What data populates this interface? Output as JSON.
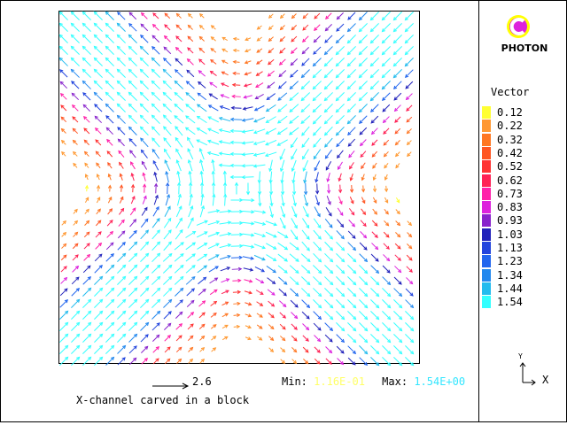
{
  "plot": {
    "title": "X-channel carved in a block",
    "reference_vector_label": "2.6",
    "min_label": "Min:",
    "min_value": "1.16E-01",
    "max_label": "Max:",
    "max_value": "1.54E+00"
  },
  "logo": {
    "icon": "photon-logo-icon",
    "text": "PHOTON"
  },
  "legend": {
    "title": "Vector",
    "entries": [
      {
        "label": "0.12",
        "color": "#ffff33"
      },
      {
        "label": "0.22",
        "color": "#ff9933"
      },
      {
        "label": "0.32",
        "color": "#ff7722"
      },
      {
        "label": "0.42",
        "color": "#ff5522"
      },
      {
        "label": "0.52",
        "color": "#ff3333"
      },
      {
        "label": "0.62",
        "color": "#ff2255"
      },
      {
        "label": "0.73",
        "color": "#ff22aa"
      },
      {
        "label": "0.83",
        "color": "#dd22dd"
      },
      {
        "label": "0.93",
        "color": "#8822cc"
      },
      {
        "label": "1.03",
        "color": "#2222bb"
      },
      {
        "label": "1.13",
        "color": "#2244dd"
      },
      {
        "label": "1.23",
        "color": "#2266ee"
      },
      {
        "label": "1.34",
        "color": "#2288ee"
      },
      {
        "label": "1.44",
        "color": "#22bbee"
      },
      {
        "label": "1.54",
        "color": "#33ffff"
      }
    ]
  },
  "axes": {
    "x_label": "X",
    "y_label": "Y"
  }
}
